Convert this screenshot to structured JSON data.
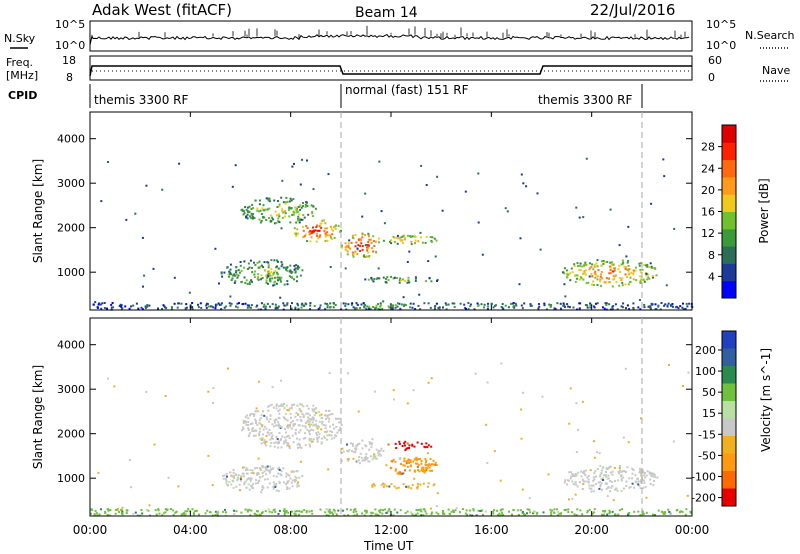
{
  "header": {
    "station": "Adak West (fitACF)",
    "beam": "Beam 14",
    "date": "22/Jul/2016"
  },
  "noise_panel": {
    "left_label": "N.Sky",
    "right_label": "N.Search",
    "tick_top": "10^5",
    "tick_bottom": "10^0",
    "right_tick_top": "10^5",
    "right_tick_bottom": "10^0"
  },
  "freq_panel": {
    "left_label_1": "Freq.",
    "left_label_2": "[MHz]",
    "tick_top": "18",
    "tick_bottom": "8",
    "right_label": "Nave",
    "right_tick_top": "60",
    "right_tick_bottom": "0"
  },
  "cpid_panel": {
    "label": "CPID",
    "segments": [
      "themis 3300 RF",
      "normal (fast) 151 RF",
      "themis 3300 RF"
    ]
  },
  "chart_data": [
    {
      "type": "heatmap",
      "name": "power",
      "ylabel": "Slant Range [km]",
      "xlabel": "Time UT",
      "ylim": [
        150,
        4600
      ],
      "y_ticks": [
        "1000",
        "2000",
        "3000",
        "4000"
      ],
      "x_ticks": [
        "00:00",
        "04:00",
        "08:00",
        "12:00",
        "16:00",
        "20:00",
        "00:00"
      ],
      "colorbar": {
        "label": "Power [dB]",
        "ticks": [
          "4",
          "8",
          "12",
          "16",
          "20",
          "24",
          "28"
        ],
        "colors": [
          "#0000ff",
          "#1b3a9a",
          "#2a6e58",
          "#3a9a3a",
          "#6fc22e",
          "#f0c81e",
          "#ff9a1a",
          "#ff6a10",
          "#ff2200",
          "#e00000"
        ]
      },
      "regions": [
        {
          "t": [
            5.2,
            8.5
          ],
          "r": [
            700,
            1300
          ],
          "level": 0.45
        },
        {
          "t": [
            6.0,
            9.0
          ],
          "r": [
            2100,
            2700
          ],
          "level": 0.5
        },
        {
          "t": [
            8.0,
            10.0
          ],
          "r": [
            1700,
            2200
          ],
          "level": 0.8
        },
        {
          "t": [
            10.0,
            11.6
          ],
          "r": [
            1350,
            1900
          ],
          "level": 0.85
        },
        {
          "t": [
            11.6,
            13.8
          ],
          "r": [
            1650,
            1850
          ],
          "level": 0.65
        },
        {
          "t": [
            10.8,
            14.0
          ],
          "r": [
            780,
            920
          ],
          "level": 0.45
        },
        {
          "t": [
            18.8,
            22.6
          ],
          "r": [
            700,
            1300
          ],
          "level": 0.7
        },
        {
          "t": [
            0.0,
            24.0
          ],
          "r": [
            180,
            330
          ],
          "level": 0.3
        }
      ]
    },
    {
      "type": "heatmap",
      "name": "velocity",
      "ylabel": "Slant Range [km]",
      "xlabel": "Time UT",
      "ylim": [
        150,
        4600
      ],
      "y_ticks": [
        "1000",
        "2000",
        "3000",
        "4000"
      ],
      "x_ticks": [
        "00:00",
        "04:00",
        "08:00",
        "12:00",
        "16:00",
        "20:00",
        "00:00"
      ],
      "colorbar": {
        "label": "Velocity [m s^-1]",
        "ticks": [
          "200",
          "100",
          "50",
          "15",
          "-15",
          "-50",
          "-100",
          "-200"
        ],
        "colors": [
          "#2040c0",
          "#3060a0",
          "#2a8a50",
          "#70c040",
          "#b8e0a0",
          "#c8c8c8",
          "#f0b020",
          "#ff9a10",
          "#ff6a00",
          "#e80000"
        ]
      },
      "regions": [
        {
          "t": [
            5.2,
            8.5
          ],
          "r": [
            700,
            1300
          ],
          "vel": "-15..15"
        },
        {
          "t": [
            6.0,
            10.0
          ],
          "r": [
            1700,
            2700
          ],
          "vel": "-15..15"
        },
        {
          "t": [
            10.0,
            11.6
          ],
          "r": [
            1350,
            1900
          ],
          "vel": "-15..15"
        },
        {
          "t": [
            11.8,
            13.6
          ],
          "r": [
            1650,
            1850
          ],
          "vel": "< -200"
        },
        {
          "t": [
            11.6,
            14.0
          ],
          "r": [
            1100,
            1500
          ],
          "vel": "-100..-50"
        },
        {
          "t": [
            11.0,
            14.0
          ],
          "r": [
            780,
            920
          ],
          "vel": "-50..-15"
        },
        {
          "t": [
            18.8,
            22.6
          ],
          "r": [
            700,
            1300
          ],
          "vel": "-15..15"
        },
        {
          "t": [
            0.0,
            24.0
          ],
          "r": [
            180,
            330
          ],
          "vel": "15..50"
        }
      ]
    }
  ],
  "footer": {
    "xlabel": "Time UT"
  }
}
